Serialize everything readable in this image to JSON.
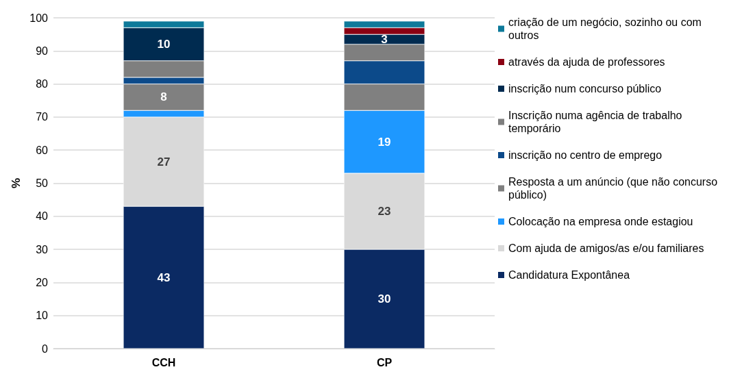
{
  "chart_data": {
    "type": "bar",
    "stacked": true,
    "ylabel": "%",
    "categories": [
      "CCH",
      "CP"
    ],
    "ylim": [
      0,
      100
    ],
    "yticks": [
      0,
      10,
      20,
      30,
      40,
      50,
      60,
      70,
      80,
      90,
      100
    ],
    "grid": "y",
    "legend": "right",
    "series": [
      {
        "name": "Candidatura Expontânea",
        "color": "#0b2a63",
        "values": [
          43,
          30
        ],
        "value_labels": [
          "43",
          "30"
        ]
      },
      {
        "name": "Com ajuda de amigos/as e/ou familiares",
        "color": "#d9d9d9",
        "values": [
          27,
          23
        ],
        "value_labels": [
          "27",
          "23"
        ]
      },
      {
        "name": "Colocação na empresa onde estagiou",
        "color": "#1e98ff",
        "values": [
          2,
          19
        ],
        "value_labels": [
          null,
          "19"
        ]
      },
      {
        "name": "Resposta a um anúncio (que não concurso público)",
        "color": "#808080",
        "values": [
          8,
          8
        ],
        "value_labels": [
          "8",
          null
        ]
      },
      {
        "name": "inscrição no centro de emprego",
        "color": "#0c4a8a",
        "values": [
          2,
          7
        ]
      },
      {
        "name": "Inscrição numa agência de trabalho temporário",
        "color": "#7f7f7f",
        "values": [
          5,
          5
        ]
      },
      {
        "name": "inscrição num concurso público",
        "color": "#002b50",
        "values": [
          10,
          3
        ],
        "value_labels": [
          "10",
          "3"
        ]
      },
      {
        "name": "através da ajuda de professores",
        "color": "#8b0012",
        "values": [
          0,
          2
        ]
      },
      {
        "name": "criação de um negócio, sozinho ou com outros",
        "color": "#0e7a9a",
        "values": [
          2,
          2
        ]
      }
    ]
  }
}
